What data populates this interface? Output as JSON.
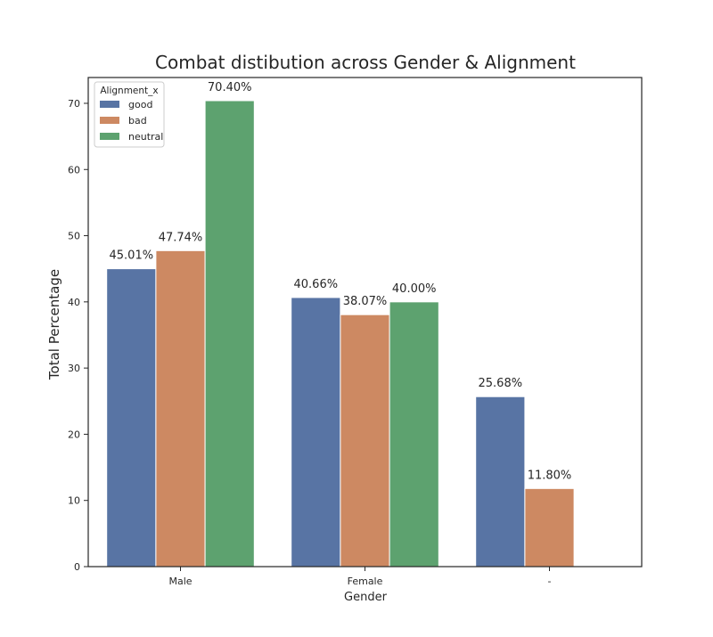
{
  "chart_data": {
    "type": "bar",
    "title": "Combat distibution across Gender & Alignment",
    "xlabel": "Gender",
    "ylabel": "Total Percentage",
    "categories": [
      "Male",
      "Female",
      "-"
    ],
    "ylim": [
      0,
      73.9
    ],
    "yticks": [
      0,
      10,
      20,
      30,
      40,
      50,
      60,
      70
    ],
    "grid": false,
    "legend": {
      "title": "Alignment_x",
      "placement": "top-left"
    },
    "series": [
      {
        "name": "good",
        "color": "#5874a4",
        "values": [
          45.01,
          40.66,
          25.68
        ],
        "labels": [
          "45.01%",
          "40.66%",
          "25.68%"
        ]
      },
      {
        "name": "bad",
        "color": "#cd8962",
        "values": [
          47.74,
          38.07,
          11.8
        ],
        "labels": [
          "47.74%",
          "38.07%",
          "11.80%"
        ]
      },
      {
        "name": "neutral",
        "color": "#5da26f",
        "values": [
          70.4,
          40.0,
          null
        ],
        "labels": [
          "70.40%",
          "40.00%",
          null
        ]
      }
    ]
  }
}
